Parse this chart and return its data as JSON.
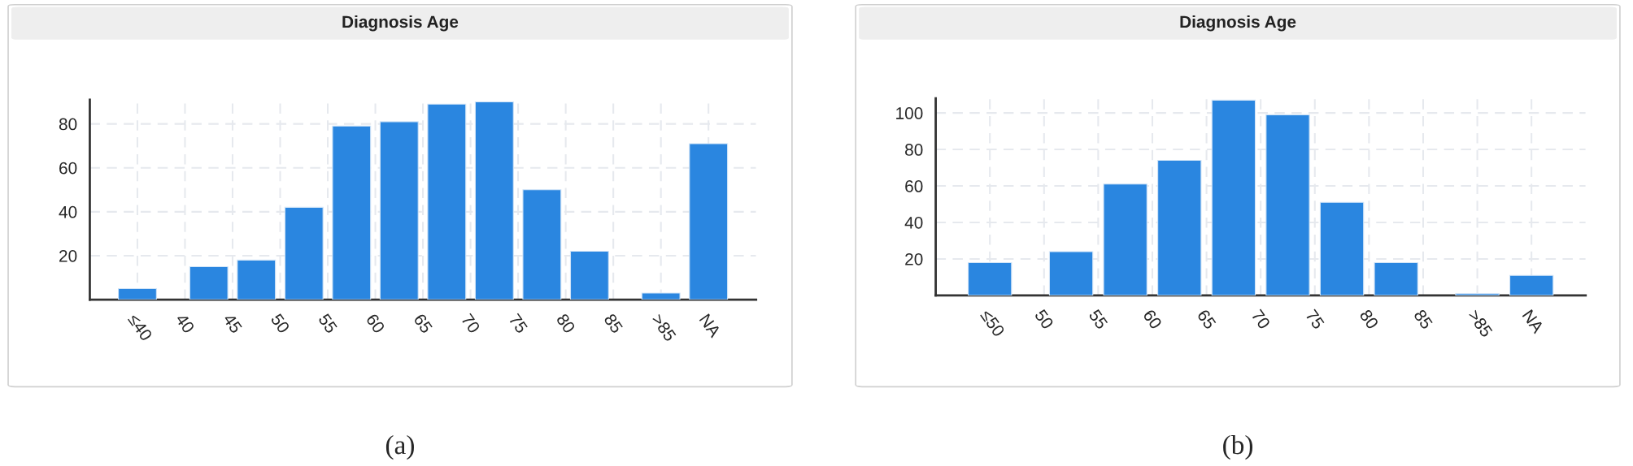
{
  "chart_data": [
    {
      "type": "bar",
      "title": "Diagnosis Age",
      "annotations": [
        "(a)"
      ],
      "x": [
        35,
        42.5,
        47.5,
        52.5,
        57.5,
        62.5,
        67.5,
        72.5,
        77.5,
        82.5,
        90,
        95
      ],
      "values": [
        5,
        15,
        18,
        42,
        79,
        81,
        89,
        90,
        50,
        22,
        3,
        71
      ],
      "color": "#2a86e0",
      "xlim": [
        30,
        100
      ],
      "xticks": [
        {
          "value": 35,
          "label": "≤40"
        },
        40,
        45,
        50,
        55,
        60,
        65,
        70,
        75,
        80,
        85,
        {
          "value": 90,
          "label": ">85"
        },
        {
          "value": 95,
          "label": "NA"
        }
      ],
      "ylim": [
        0,
        91
      ],
      "yticks": [
        20,
        40,
        60,
        80
      ],
      "grid": true
    },
    {
      "type": "bar",
      "title": "Diagnosis Age",
      "annotations": [
        "(b)"
      ],
      "x": [
        45,
        52.5,
        57.5,
        62.5,
        67.5,
        72.5,
        77.5,
        82.5,
        90,
        95
      ],
      "values": [
        18,
        24,
        61,
        74,
        107,
        99,
        51,
        18,
        1,
        11
      ],
      "color": "#2a86e0",
      "xlim": [
        40,
        100
      ],
      "xticks": [
        {
          "value": 45,
          "label": "≤50"
        },
        50,
        55,
        60,
        65,
        70,
        75,
        80,
        85,
        {
          "value": 90,
          "label": ">85"
        },
        {
          "value": 95,
          "label": "NA"
        }
      ],
      "ylim": [
        0,
        108
      ],
      "yticks": [
        20,
        40,
        60,
        80,
        100
      ],
      "grid": true
    }
  ]
}
